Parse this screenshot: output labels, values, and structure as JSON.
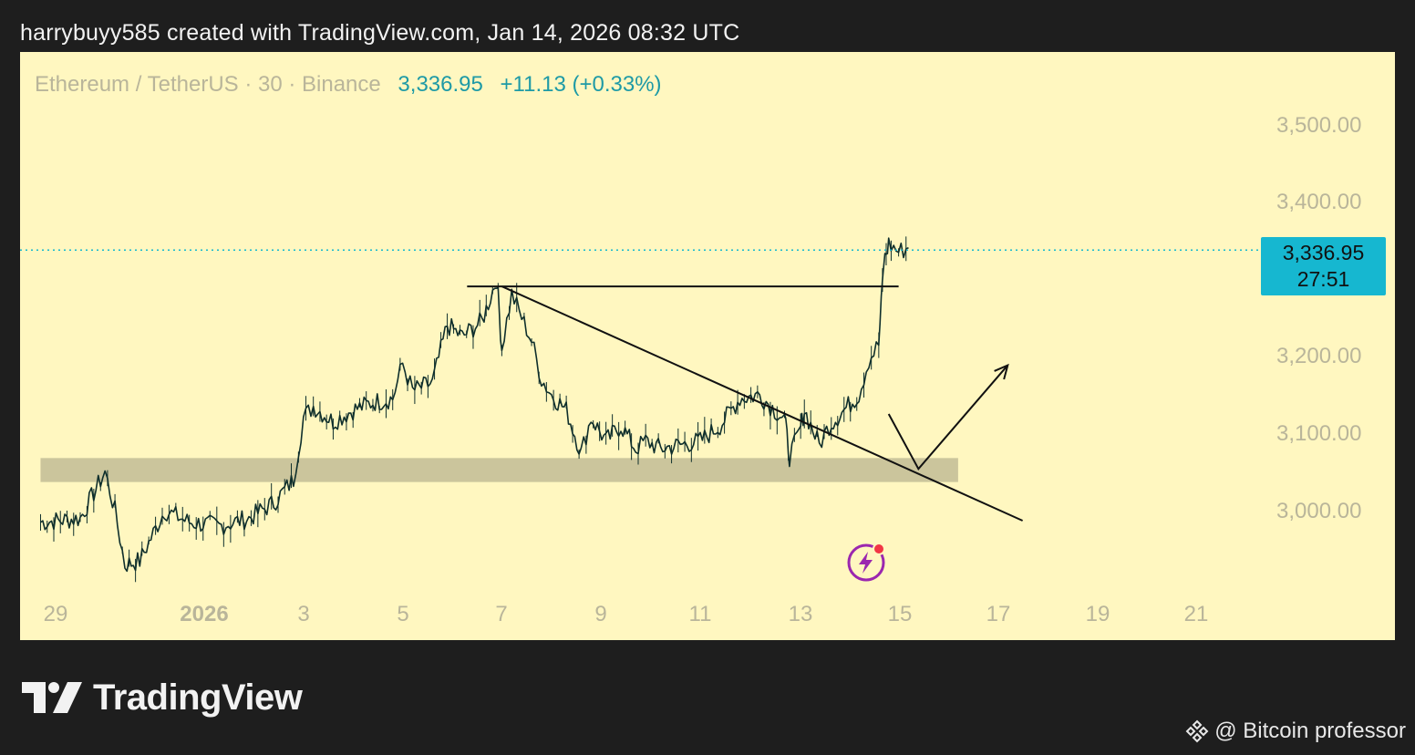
{
  "header": {
    "attribution": "harrybuyy585 created with TradingView.com, Jan 14, 2026 08:32 UTC"
  },
  "legend": {
    "symbol": "Ethereum / TetherUS · 30 · Binance",
    "price": "3,336.95",
    "change": "+11.13 (+0.33%)"
  },
  "price_tag": {
    "price": "3,336.95",
    "countdown": "27:51"
  },
  "colors": {
    "chart_background": "#fff7c0",
    "page_background": "#1e1e1e",
    "accent": "#16b7d0",
    "candles": "#000000",
    "support_zone": "#c8c29a",
    "axis_text": "#b9b59a"
  },
  "branding": {
    "logo_icon": "tradingview-logo-icon",
    "logo_text": "TradingView"
  },
  "watermark": {
    "icon": "binance-diamond-icon",
    "text": "@ Bitcoin professor"
  },
  "chart_data": {
    "type": "line",
    "instrument": "Ethereum / TetherUS",
    "timeframe": "30",
    "exchange": "Binance",
    "x_axis_ticks": [
      "29",
      "2026",
      "3",
      "5",
      "7",
      "9",
      "11",
      "13",
      "15",
      "17",
      "19",
      "21"
    ],
    "y_axis_ticks": [
      "3,500.00",
      "3,400.00",
      "3,200.00",
      "3,100.00",
      "3,000.00"
    ],
    "y_tick_values": [
      3500,
      3400,
      3200,
      3100,
      3000
    ],
    "ylim": [
      2920,
      3570
    ],
    "xlim_days": [
      -3.3,
      25.0
    ],
    "x_tick_days": [
      -2,
      0,
      2,
      4,
      6,
      8,
      10,
      12,
      14,
      16,
      18,
      20
    ],
    "current_price": 3336.95,
    "series": [
      {
        "x_days": [
          -3.3,
          -2.5,
          -2.0,
          -1.8,
          -1.6,
          -1.3,
          -0.8,
          -0.3,
          0.3,
          0.9,
          1.4,
          1.8,
          2.0,
          2.2,
          2.6,
          3.0,
          3.4,
          3.8,
          4.0,
          4.2,
          4.6,
          4.9,
          5.2,
          5.6,
          5.9,
          6.0,
          6.2,
          6.4,
          6.6,
          6.8,
          7.0,
          7.3,
          7.6,
          7.8,
          8.1,
          8.4,
          8.7,
          8.9,
          9.2,
          9.6,
          10.0,
          10.4,
          10.8,
          11.2,
          11.5,
          11.7,
          11.8,
          12.0,
          12.1,
          12.4,
          12.6,
          12.9,
          13.2,
          13.4,
          13.6,
          13.7,
          13.8,
          14.0,
          14.2
        ],
        "y": [
          2985,
          2990,
          3050,
          3000,
          2930,
          2935,
          3000,
          2985,
          2980,
          2990,
          3010,
          3040,
          3120,
          3135,
          3115,
          3130,
          3140,
          3145,
          3190,
          3155,
          3165,
          3240,
          3225,
          3245,
          3300,
          3210,
          3280,
          3250,
          3220,
          3170,
          3150,
          3130,
          3075,
          3120,
          3090,
          3110,
          3080,
          3090,
          3080,
          3085,
          3090,
          3110,
          3145,
          3150,
          3130,
          3120,
          3070,
          3100,
          3130,
          3085,
          3110,
          3130,
          3150,
          3195,
          3215,
          3320,
          3345,
          3335,
          3340
        ]
      }
    ],
    "annotations": {
      "resistance_price": 3290,
      "resistance_days": [
        5.3,
        14.0
      ],
      "support_zone_prices": [
        3037,
        3068
      ],
      "support_zone_days": [
        -3.3,
        15.2
      ],
      "descending_trendline": {
        "days": [
          6.0,
          16.5
        ],
        "prices": [
          3290,
          2987
        ]
      },
      "projection_path": {
        "days": [
          13.8,
          14.4,
          16.2
        ],
        "prices": [
          3125,
          3054,
          3188
        ]
      }
    },
    "grid": false,
    "legend_position": "top-left"
  }
}
